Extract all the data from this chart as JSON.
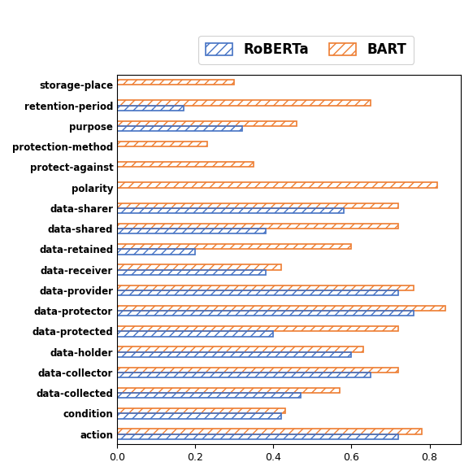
{
  "categories": [
    "storage-place",
    "retention-period",
    "purpose",
    "protection-method",
    "protect-against",
    "polarity",
    "data-sharer",
    "data-shared",
    "data-retained",
    "data-receiver",
    "data-provider",
    "data-protector",
    "data-protected",
    "data-holder",
    "data-collector",
    "data-collected",
    "condition",
    "action"
  ],
  "roberta": [
    0.0,
    0.17,
    0.32,
    0.0,
    0.0,
    0.0,
    0.58,
    0.38,
    0.2,
    0.38,
    0.72,
    0.76,
    0.4,
    0.6,
    0.65,
    0.47,
    0.42,
    0.72
  ],
  "bart": [
    0.3,
    0.65,
    0.46,
    0.23,
    0.35,
    0.82,
    0.72,
    0.72,
    0.6,
    0.42,
    0.76,
    0.84,
    0.72,
    0.63,
    0.72,
    0.57,
    0.43,
    0.78
  ],
  "roberta_color": "#4472c4",
  "bart_color": "#ed7d31",
  "xlim_max": 0.88,
  "bar_height": 0.22,
  "bar_gap": 0.0
}
